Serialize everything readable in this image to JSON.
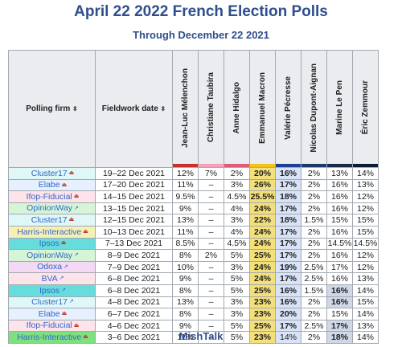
{
  "title": "April 22 2022 French Election Polls",
  "subtitle": "Through December 22 2021",
  "footer": "MishTalk",
  "headers": {
    "pollster": "Polling firm",
    "fieldwork": "Fieldwork date",
    "sort_symbol": "⬍",
    "candidates": [
      {
        "name": "Jean-Luc Mélenchon",
        "color": "#c9302c"
      },
      {
        "name": "Christiane Taubira",
        "color": "#f7a0bc"
      },
      {
        "name": "Anne Hidalgo",
        "color": "#e05a79"
      },
      {
        "name": "Emmanuel Macron",
        "color": "#f0c419"
      },
      {
        "name": "Valérie Pécresse",
        "color": "#1f3f99"
      },
      {
        "name": "Nicolas Dupont-Aignan",
        "color": "#1a3a6b"
      },
      {
        "name": "Marine Le Pen",
        "color": "#1b2a4a"
      },
      {
        "name": "Éric Zemmour",
        "color": "#0d1a3a"
      }
    ]
  },
  "rows": [
    {
      "firm": "Cluster17",
      "icon": "pdf-icon",
      "date": "19–22 Dec 2021",
      "values": [
        "12%",
        "7%",
        "2%",
        "20%",
        "16%",
        "2%",
        "13%",
        "14%"
      ],
      "bold": [
        3,
        4
      ],
      "bg": "#e0f7f7"
    },
    {
      "firm": "Elabe",
      "icon": "pdf-icon",
      "date": "17–20 Dec 2021",
      "values": [
        "11%",
        "–",
        "3%",
        "26%",
        "17%",
        "2%",
        "16%",
        "13%"
      ],
      "bold": [
        3,
        4
      ],
      "bg": "#e6f0ff"
    },
    {
      "firm": "Ifop-Fiducial",
      "icon": "pdf-icon",
      "date": "14–15 Dec 2021",
      "values": [
        "9.5%",
        "–",
        "4.5%",
        "25.5%",
        "18%",
        "2%",
        "16%",
        "12%"
      ],
      "bold": [
        3,
        4
      ],
      "bg": "#fde4ea"
    },
    {
      "firm": "OpinionWay",
      "icon": "external-link-icon",
      "date": "13–15 Dec 2021",
      "values": [
        "9%",
        "–",
        "4%",
        "24%",
        "17%",
        "2%",
        "16%",
        "12%"
      ],
      "bold": [
        3,
        4
      ],
      "bg": "#d6f5d6"
    },
    {
      "firm": "Cluster17",
      "icon": "pdf-icon",
      "date": "12–15 Dec 2021",
      "values": [
        "13%",
        "–",
        "3%",
        "22%",
        "18%",
        "1.5%",
        "15%",
        "15%"
      ],
      "bold": [
        3,
        4
      ],
      "bg": "#e0f7f7"
    },
    {
      "firm": "Harris-Interactive",
      "icon": "pdf-icon",
      "date": "10–13 Dec 2021",
      "values": [
        "11%",
        "–",
        "4%",
        "24%",
        "17%",
        "2%",
        "16%",
        "15%"
      ],
      "bold": [
        3,
        4
      ],
      "bg": "#f7f0b5"
    },
    {
      "firm": "Ipsos",
      "icon": "pdf-icon",
      "date": "7–13 Dec 2021",
      "values": [
        "8.5%",
        "–",
        "4.5%",
        "24%",
        "17%",
        "2%",
        "14.5%",
        "14.5%"
      ],
      "bold": [
        3,
        4
      ],
      "bg": "#66dcdc"
    },
    {
      "firm": "OpinionWay",
      "icon": "external-link-icon",
      "date": "8–9 Dec 2021",
      "values": [
        "8%",
        "2%",
        "5%",
        "25%",
        "17%",
        "2%",
        "16%",
        "12%"
      ],
      "bold": [
        3,
        4
      ],
      "bg": "#d6f5d6"
    },
    {
      "firm": "Odoxa",
      "icon": "external-link-icon",
      "date": "7–9 Dec 2021",
      "values": [
        "10%",
        "–",
        "3%",
        "24%",
        "19%",
        "2.5%",
        "17%",
        "12%"
      ],
      "bold": [
        3,
        4
      ],
      "bg": "#f3d9f3"
    },
    {
      "firm": "BVA",
      "icon": "external-link-icon",
      "date": "6–8 Dec 2021",
      "values": [
        "9%",
        "–",
        "5%",
        "24%",
        "17%",
        "2.5%",
        "16%",
        "13%"
      ],
      "bold": [
        3,
        4
      ],
      "bg": "#fde4ea"
    },
    {
      "firm": "Ipsos",
      "icon": "external-link-icon",
      "date": "6–8 Dec 2021",
      "values": [
        "8%",
        "–",
        "5%",
        "25%",
        "16%",
        "1.5%",
        "16%",
        "14%"
      ],
      "bold": [
        3,
        4,
        6
      ],
      "bg": "#66dcdc"
    },
    {
      "firm": "Cluster17",
      "icon": "external-link-icon",
      "date": "4–8 Dec 2021",
      "values": [
        "13%",
        "–",
        "3%",
        "23%",
        "16%",
        "2%",
        "16%",
        "15%"
      ],
      "bold": [
        3,
        4,
        6
      ],
      "bg": "#e0f7f7"
    },
    {
      "firm": "Elabe",
      "icon": "pdf-icon",
      "date": "6–7 Dec 2021",
      "values": [
        "8%",
        "–",
        "3%",
        "23%",
        "20%",
        "2%",
        "15%",
        "14%"
      ],
      "bold": [
        3,
        4
      ],
      "bg": "#e6f0ff"
    },
    {
      "firm": "Ifop-Fiducial",
      "icon": "pdf-icon",
      "date": "4–6 Dec 2021",
      "values": [
        "9%",
        "–",
        "5%",
        "25%",
        "17%",
        "2.5%",
        "17%",
        "13%"
      ],
      "bold": [
        3,
        4,
        6
      ],
      "bg": "#fde4ea"
    },
    {
      "firm": "Harris-Interactive",
      "icon": "pdf-icon",
      "date": "3–6 Dec 2021",
      "values": [
        "11%",
        "–",
        "5%",
        "23%",
        "14%",
        "2%",
        "18%",
        "14%"
      ],
      "bold": [
        3,
        6
      ],
      "bg": "#7fe07f"
    }
  ],
  "icon_glyphs": {
    "pdf-icon": "⏏",
    "external-link-icon": "↗"
  }
}
